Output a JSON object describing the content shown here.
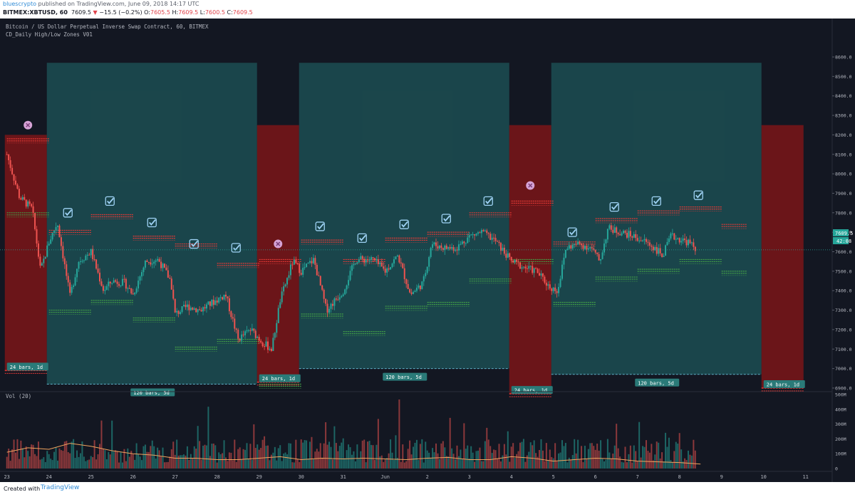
{
  "header": {
    "user": "bluescrypto",
    "published": " published on TradingView.com, June 09, 2018 14:17 UTC",
    "symbol": "BITMEX:XBTUSD, 60",
    "last": "7609.5",
    "arrow": "▼",
    "change": "−15.5 (−0.2%)",
    "o_label": "O:",
    "o": "7605.5",
    "h_label": "H:",
    "h": "7609.5",
    "l_label": "L:",
    "l": "7600.5",
    "c_label": "C:",
    "c": "7609.5"
  },
  "legend": {
    "title": "Bitcoin / US Dollar Perpetual Inverse Swap Contract, 60, BITMEX",
    "indicator": "CD_Daily High/Low Zones V01",
    "vol": "Vol (20)"
  },
  "price_badge": {
    "price": "7609.5",
    "countdown": "42:08"
  },
  "footer": {
    "created": "Created with",
    "brand": "TradingView"
  },
  "colors": {
    "up": "#26a69a",
    "down": "#ef5350",
    "bg": "#131722",
    "zone_teal": "#1e5a5c",
    "zone_red": "#7b1518",
    "resistance": "#e53935",
    "support": "#43a047",
    "badge": "#2a7a78",
    "check": "#9fd3f5",
    "cross": "#d6a3d6",
    "vol_ma": "#f0a35e"
  },
  "chart_data": {
    "type": "candlestick",
    "x_labels": [
      "23",
      "24",
      "25",
      "26",
      "27",
      "28",
      "29",
      "30",
      "31",
      "Jun",
      "2",
      "3",
      "4",
      "5",
      "6",
      "7",
      "8",
      "9",
      "10",
      "11"
    ],
    "y_ticks": [
      "8600.0",
      "8500.0",
      "8400.0",
      "8300.0",
      "8200.0",
      "8100.0",
      "8000.0",
      "7900.0",
      "7800.0",
      "7700.0",
      "7600.0",
      "7500.0",
      "7400.0",
      "7300.0",
      "7200.0",
      "7100.0",
      "7000.0",
      "6900.0"
    ],
    "vol_ticks": [
      "500M",
      "400M",
      "300M",
      "200M",
      "100M",
      "0"
    ],
    "price_path": [
      [
        23.0,
        8100
      ],
      [
        23.3,
        7880
      ],
      [
        23.6,
        7820
      ],
      [
        23.8,
        7500
      ],
      [
        24.0,
        7650
      ],
      [
        24.2,
        7750
      ],
      [
        24.5,
        7370
      ],
      [
        24.7,
        7550
      ],
      [
        25.0,
        7600
      ],
      [
        25.3,
        7400
      ],
      [
        25.5,
        7450
      ],
      [
        25.8,
        7440
      ],
      [
        26.0,
        7380
      ],
      [
        26.3,
        7550
      ],
      [
        26.6,
        7560
      ],
      [
        26.9,
        7450
      ],
      [
        27.0,
        7280
      ],
      [
        27.3,
        7320
      ],
      [
        27.6,
        7300
      ],
      [
        27.9,
        7340
      ],
      [
        28.2,
        7380
      ],
      [
        28.5,
        7150
      ],
      [
        28.8,
        7200
      ],
      [
        29.1,
        7130
      ],
      [
        29.3,
        7100
      ],
      [
        29.5,
        7350
      ],
      [
        29.8,
        7550
      ],
      [
        30.0,
        7500
      ],
      [
        30.3,
        7560
      ],
      [
        30.6,
        7300
      ],
      [
        31.0,
        7400
      ],
      [
        31.3,
        7560
      ],
      [
        31.7,
        7560
      ],
      [
        32.0,
        7500
      ],
      [
        32.3,
        7580
      ],
      [
        32.6,
        7380
      ],
      [
        32.9,
        7440
      ],
      [
        33.1,
        7640
      ],
      [
        33.4,
        7620
      ],
      [
        33.7,
        7620
      ],
      [
        34.0,
        7680
      ],
      [
        34.3,
        7700
      ],
      [
        34.6,
        7660
      ],
      [
        35.0,
        7550
      ],
      [
        35.3,
        7520
      ],
      [
        35.6,
        7500
      ],
      [
        35.9,
        7420
      ],
      [
        36.1,
        7400
      ],
      [
        36.3,
        7620
      ],
      [
        36.6,
        7640
      ],
      [
        36.9,
        7620
      ],
      [
        37.1,
        7550
      ],
      [
        37.3,
        7720
      ],
      [
        37.6,
        7700
      ],
      [
        37.9,
        7680
      ],
      [
        38.2,
        7650
      ],
      [
        38.4,
        7620
      ],
      [
        38.6,
        7580
      ],
      [
        38.8,
        7680
      ],
      [
        39.2,
        7650
      ],
      [
        39.4,
        7610
      ]
    ],
    "zones": [
      {
        "type": "daily",
        "start": 22.95,
        "end": 23.95,
        "label": "24 bars, 1d",
        "high": 8200,
        "low": 6990
      },
      {
        "type": "range",
        "start": 23.95,
        "end": 28.95,
        "label": "120 bars, 5d",
        "high": 8570,
        "low": 6920
      },
      {
        "type": "daily",
        "start": 28.95,
        "end": 29.95,
        "label": "24 bars, 1d",
        "high": 8250,
        "low": 6930
      },
      {
        "type": "range",
        "start": 29.95,
        "end": 34.95,
        "label": "120 bars, 5d",
        "high": 8570,
        "low": 7000
      },
      {
        "type": "daily",
        "start": 34.95,
        "end": 35.95,
        "label": "24 bars, 1d",
        "high": 8250,
        "low": 6870
      },
      {
        "type": "range",
        "start": 35.95,
        "end": 40.95,
        "label": "120 bars, 5d",
        "high": 8570,
        "low": 6970
      },
      {
        "type": "daily",
        "start": 40.95,
        "end": 41.95,
        "label": "24 bars, 1d",
        "high": 8250,
        "low": 6900
      }
    ],
    "levels": [
      {
        "start": 23.0,
        "end": 24.0,
        "high": 8180,
        "low": 7800
      },
      {
        "start": 24.0,
        "end": 25.0,
        "high": 7710,
        "low": 7300
      },
      {
        "start": 25.0,
        "end": 26.0,
        "high": 7790,
        "low": 7350
      },
      {
        "start": 26.0,
        "end": 27.0,
        "high": 7680,
        "low": 7260
      },
      {
        "start": 27.0,
        "end": 28.0,
        "high": 7640,
        "low": 7110
      },
      {
        "start": 28.0,
        "end": 29.0,
        "high": 7540,
        "low": 7150
      },
      {
        "start": 29.0,
        "end": 30.0,
        "high": 7560,
        "low": 6920
      },
      {
        "start": 30.0,
        "end": 31.0,
        "high": 7660,
        "low": 7280
      },
      {
        "start": 31.0,
        "end": 32.0,
        "high": 7560,
        "low": 7190
      },
      {
        "start": 32.0,
        "end": 33.0,
        "high": 7670,
        "low": 7320
      },
      {
        "start": 33.0,
        "end": 34.0,
        "high": 7700,
        "low": 7340
      },
      {
        "start": 34.0,
        "end": 35.0,
        "high": 7800,
        "low": 7460
      },
      {
        "start": 35.0,
        "end": 36.0,
        "high": 7860,
        "low": 7560
      },
      {
        "start": 36.0,
        "end": 37.0,
        "high": 7650,
        "low": 7340
      },
      {
        "start": 37.0,
        "end": 38.0,
        "high": 7770,
        "low": 7470
      },
      {
        "start": 38.0,
        "end": 39.0,
        "high": 7810,
        "low": 7510
      },
      {
        "start": 39.0,
        "end": 40.0,
        "high": 7830,
        "low": 7560
      },
      {
        "start": 40.0,
        "end": 40.6,
        "high": 7740,
        "low": 7500
      }
    ],
    "markers": [
      {
        "x": 23.5,
        "price": 8250,
        "kind": "cross"
      },
      {
        "x": 24.45,
        "price": 7800,
        "kind": "check"
      },
      {
        "x": 25.45,
        "price": 7860,
        "kind": "check"
      },
      {
        "x": 26.45,
        "price": 7750,
        "kind": "check"
      },
      {
        "x": 27.45,
        "price": 7640,
        "kind": "check"
      },
      {
        "x": 28.45,
        "price": 7620,
        "kind": "check"
      },
      {
        "x": 29.45,
        "price": 7640,
        "kind": "cross"
      },
      {
        "x": 30.45,
        "price": 7730,
        "kind": "check"
      },
      {
        "x": 31.45,
        "price": 7670,
        "kind": "check"
      },
      {
        "x": 32.45,
        "price": 7740,
        "kind": "check"
      },
      {
        "x": 33.45,
        "price": 7770,
        "kind": "check"
      },
      {
        "x": 34.45,
        "price": 7860,
        "kind": "check"
      },
      {
        "x": 35.45,
        "price": 7940,
        "kind": "cross"
      },
      {
        "x": 36.45,
        "price": 7700,
        "kind": "check"
      },
      {
        "x": 37.45,
        "price": 7830,
        "kind": "check"
      },
      {
        "x": 38.45,
        "price": 7860,
        "kind": "check"
      },
      {
        "x": 39.45,
        "price": 7890,
        "kind": "check"
      }
    ],
    "vol_ma_path": [
      [
        23.0,
        110
      ],
      [
        23.5,
        140
      ],
      [
        24.0,
        130
      ],
      [
        24.5,
        170
      ],
      [
        25.0,
        150
      ],
      [
        25.5,
        120
      ],
      [
        26.0,
        100
      ],
      [
        26.5,
        90
      ],
      [
        27.0,
        70
      ],
      [
        27.5,
        70
      ],
      [
        28.0,
        60
      ],
      [
        28.5,
        60
      ],
      [
        29.0,
        70
      ],
      [
        29.5,
        80
      ],
      [
        30.0,
        60
      ],
      [
        30.5,
        70
      ],
      [
        31.0,
        65
      ],
      [
        31.5,
        70
      ],
      [
        32.0,
        65
      ],
      [
        32.5,
        60
      ],
      [
        33.0,
        70
      ],
      [
        33.5,
        75
      ],
      [
        34.0,
        60
      ],
      [
        34.5,
        60
      ],
      [
        35.0,
        80
      ],
      [
        35.5,
        70
      ],
      [
        36.0,
        50
      ],
      [
        36.5,
        60
      ],
      [
        37.0,
        70
      ],
      [
        37.5,
        65
      ],
      [
        38.0,
        50
      ],
      [
        38.5,
        45
      ],
      [
        39.0,
        40
      ],
      [
        39.5,
        30
      ]
    ]
  }
}
